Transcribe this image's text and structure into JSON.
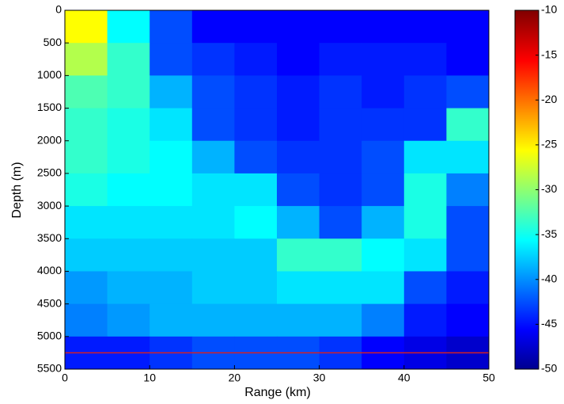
{
  "chart_data": {
    "type": "heatmap",
    "xlabel": "Range (km)",
    "ylabel": "Depth (m)",
    "x_edges": [
      0,
      5,
      10,
      15,
      20,
      25,
      30,
      35,
      40,
      45,
      50
    ],
    "y_edges": [
      0,
      500,
      1000,
      1500,
      2000,
      2500,
      3000,
      3500,
      4000,
      4500,
      5000,
      5500
    ],
    "z": [
      [
        -25,
        -35,
        -42,
        -45,
        -45,
        -45,
        -45,
        -45,
        -45,
        -45
      ],
      [
        -28,
        -33,
        -42,
        -43,
        -44,
        -45,
        -44,
        -44,
        -44,
        -45
      ],
      [
        -32,
        -33,
        -38,
        -42,
        -43,
        -44,
        -43,
        -44,
        -43,
        -42
      ],
      [
        -33,
        -34,
        -36,
        -42,
        -43,
        -44,
        -43,
        -43,
        -43,
        -33
      ],
      [
        -33,
        -34,
        -35,
        -38,
        -42,
        -43,
        -43,
        -42,
        -36,
        -36
      ],
      [
        -34,
        -35,
        -35,
        -36,
        -36,
        -42,
        -43,
        -42,
        -34,
        -40
      ],
      [
        -36,
        -36,
        -36,
        -36,
        -35,
        -38,
        -42,
        -38,
        -34,
        -42
      ],
      [
        -37,
        -37,
        -37,
        -37,
        -37,
        -33,
        -33,
        -35,
        -36,
        -42
      ],
      [
        -39,
        -38,
        -38,
        -37,
        -37,
        -36,
        -36,
        -36,
        -42,
        -44
      ],
      [
        -40,
        -39,
        -38,
        -38,
        -38,
        -38,
        -38,
        -40,
        -44,
        -45
      ],
      [
        -44,
        -44,
        -43,
        -42,
        -42,
        -42,
        -43,
        -45,
        -46,
        -47
      ]
    ],
    "seabed_depth": 5250,
    "seabed_color": "#d62020",
    "xlim": [
      0,
      50
    ],
    "xticks": [
      0,
      10,
      20,
      30,
      40,
      50
    ],
    "ylim": [
      0,
      5500
    ],
    "y_reversed": true,
    "yticks": [
      0,
      500,
      1000,
      1500,
      2000,
      2500,
      3000,
      3500,
      4000,
      4500,
      5000,
      5500
    ],
    "clim": [
      -50,
      -10
    ],
    "cticks": [
      -10,
      -15,
      -20,
      -25,
      -30,
      -35,
      -40,
      -45,
      -50
    ],
    "colormap": "jet"
  }
}
